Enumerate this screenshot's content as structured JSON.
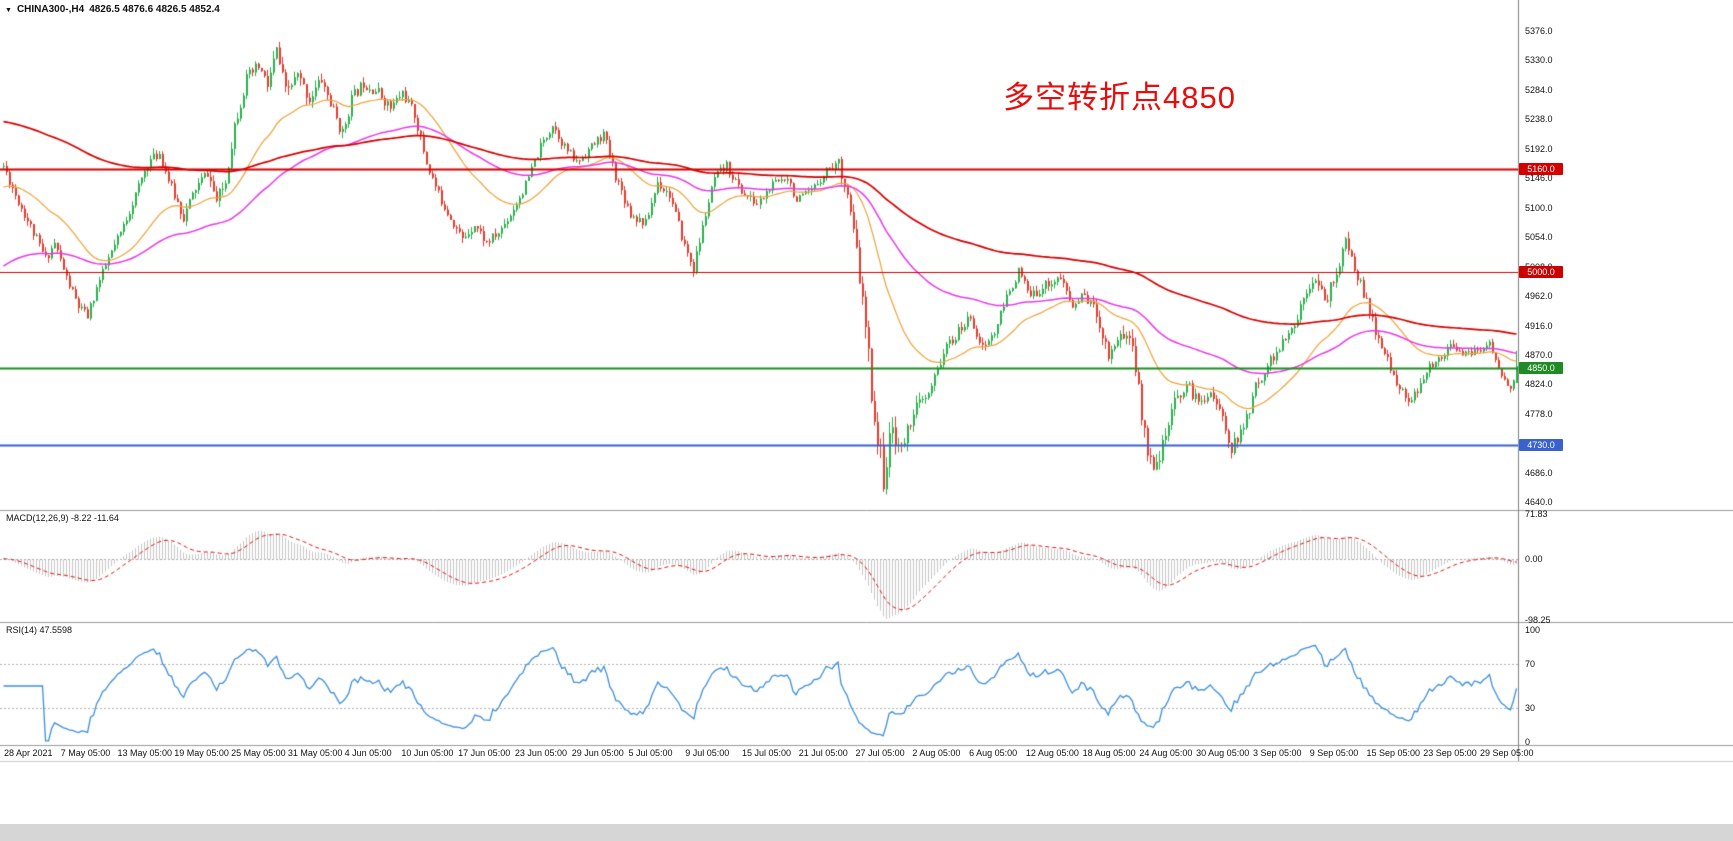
{
  "window": {
    "symbol_period": "CHINA300-,H4",
    "ohlc_text": "4826.5 4876.6 4826.5 4852.4"
  },
  "icons": {
    "symbol_marker": "▼"
  },
  "annotation": {
    "text": "多空转折点4850",
    "color": "#e60d0d"
  },
  "price_axis": {
    "labels": [
      "5376.0",
      "5330.0",
      "5284.0",
      "5238.0",
      "5192.0",
      "5146.0",
      "5100.0",
      "5054.0",
      "5008.0",
      "4962.0",
      "4916.0",
      "4870.0",
      "4824.0",
      "4778.0",
      "4732.0",
      "4686.0",
      "4640.0"
    ]
  },
  "time_axis": {
    "labels": [
      "28 Apr 2021",
      "7 May 05:00",
      "13 May 05:00",
      "19 May 05:00",
      "25 May 05:00",
      "31 May 05:00",
      "4 Jun 05:00",
      "10 Jun 05:00",
      "17 Jun 05:00",
      "23 Jun 05:00",
      "29 Jun 05:00",
      "5 Jul 05:00",
      "9 Jul 05:00",
      "15 Jul 05:00",
      "21 Jul 05:00",
      "27 Jul 05:00",
      "2 Aug 05:00",
      "6 Aug 05:00",
      "12 Aug 05:00",
      "18 Aug 05:00",
      "24 Aug 05:00",
      "30 Aug 05:00",
      "3 Sep 05:00",
      "9 Sep 05:00",
      "15 Sep 05:00",
      "23 Sep 05:00",
      "29 Sep 05:00"
    ]
  },
  "indicators": {
    "macd": {
      "label": "MACD(12,26,9) -8.22 -11.64",
      "axis_labels": [
        "71.83",
        "0.00",
        "-98.25"
      ],
      "vmax": 71.83,
      "vmin": -98.25,
      "histogram_color": "#c6c6c6",
      "signal_color": "#dd1515"
    },
    "rsi": {
      "label": "RSI(14) 47.5598",
      "axis_labels": [
        "100",
        "70",
        "30",
        "0"
      ],
      "levels": [
        70,
        30
      ],
      "line_color": "#3e8fdd"
    }
  },
  "chart_data": {
    "type": "candlestick",
    "symbol": "CHINA300-",
    "timeframe": "H4",
    "x_range": [
      "28 Apr 2021",
      "29 Sep 2021 05:00"
    ],
    "y_axis": {
      "top": 5396,
      "bottom": 4628,
      "tick_step": 46
    },
    "candle_count": 505,
    "seed": 11,
    "bull_color": "#2dae4d",
    "bear_color": "#e23b2e",
    "last_candle": {
      "open": 4826.5,
      "high": 4876.6,
      "low": 4826.5,
      "close": 4852.4
    },
    "levels": [
      {
        "label": "5160.0",
        "price": 5160.0,
        "color": "#d40000",
        "line_width": 2
      },
      {
        "label": "5000.0",
        "price": 5000.0,
        "color": "#cc0000",
        "line_width": 1.2
      },
      {
        "label": "4850.0",
        "price": 4850.0,
        "color": "#1f8b24",
        "line_width": 2
      },
      {
        "label": "4730.0",
        "price": 4730.0,
        "color": "#3a62cf",
        "line_width": 2
      }
    ],
    "moving_averages": [
      {
        "name": "fast-ma",
        "period": 34,
        "color": "#efa23a",
        "width": 1.2,
        "seed": 5130
      },
      {
        "name": "medium-ma",
        "period": 89,
        "color": "#e838e8",
        "width": 1.5,
        "seed": 5005
      },
      {
        "name": "slow-ma",
        "period": 200,
        "color": "#d40000",
        "width": 1.7,
        "seed": 5235
      }
    ],
    "price_path_anchors": [
      [
        0,
        5165
      ],
      [
        4,
        5120
      ],
      [
        10,
        5060
      ],
      [
        14,
        5020
      ],
      [
        17,
        5045
      ],
      [
        21,
        4990
      ],
      [
        25,
        4945
      ],
      [
        28,
        4930
      ],
      [
        31,
        4975
      ],
      [
        35,
        5020
      ],
      [
        39,
        5060
      ],
      [
        44,
        5120
      ],
      [
        48,
        5170
      ],
      [
        52,
        5185
      ],
      [
        56,
        5130
      ],
      [
        60,
        5085
      ],
      [
        64,
        5130
      ],
      [
        68,
        5155
      ],
      [
        71,
        5110
      ],
      [
        74,
        5140
      ],
      [
        77,
        5230
      ],
      [
        81,
        5300
      ],
      [
        85,
        5320
      ],
      [
        88,
        5290
      ],
      [
        91,
        5345
      ],
      [
        94,
        5280
      ],
      [
        98,
        5305
      ],
      [
        102,
        5270
      ],
      [
        106,
        5300
      ],
      [
        110,
        5250
      ],
      [
        113,
        5215
      ],
      [
        116,
        5270
      ],
      [
        120,
        5295
      ],
      [
        125,
        5280
      ],
      [
        129,
        5255
      ],
      [
        133,
        5280
      ],
      [
        137,
        5245
      ],
      [
        141,
        5170
      ],
      [
        145,
        5120
      ],
      [
        149,
        5085
      ],
      [
        153,
        5050
      ],
      [
        157,
        5075
      ],
      [
        161,
        5045
      ],
      [
        165,
        5060
      ],
      [
        169,
        5090
      ],
      [
        174,
        5135
      ],
      [
        179,
        5195
      ],
      [
        183,
        5230
      ],
      [
        187,
        5195
      ],
      [
        191,
        5170
      ],
      [
        196,
        5195
      ],
      [
        200,
        5215
      ],
      [
        204,
        5150
      ],
      [
        209,
        5090
      ],
      [
        214,
        5075
      ],
      [
        218,
        5140
      ],
      [
        222,
        5120
      ],
      [
        227,
        5040
      ],
      [
        230,
        5005
      ],
      [
        234,
        5090
      ],
      [
        237,
        5145
      ],
      [
        241,
        5165
      ],
      [
        246,
        5125
      ],
      [
        251,
        5105
      ],
      [
        256,
        5135
      ],
      [
        261,
        5150
      ],
      [
        264,
        5110
      ],
      [
        269,
        5125
      ],
      [
        274,
        5160
      ],
      [
        278,
        5170
      ],
      [
        281,
        5120
      ],
      [
        284,
        5030
      ],
      [
        287,
        4910
      ],
      [
        290,
        4770
      ],
      [
        293,
        4680
      ],
      [
        296,
        4755
      ],
      [
        299,
        4720
      ],
      [
        303,
        4785
      ],
      [
        308,
        4805
      ],
      [
        313,
        4875
      ],
      [
        318,
        4905
      ],
      [
        322,
        4930
      ],
      [
        326,
        4880
      ],
      [
        330,
        4905
      ],
      [
        334,
        4960
      ],
      [
        338,
        5000
      ],
      [
        342,
        4960
      ],
      [
        347,
        4980
      ],
      [
        352,
        4990
      ],
      [
        356,
        4945
      ],
      [
        360,
        4965
      ],
      [
        364,
        4935
      ],
      [
        368,
        4870
      ],
      [
        372,
        4905
      ],
      [
        376,
        4890
      ],
      [
        379,
        4775
      ],
      [
        382,
        4700
      ],
      [
        386,
        4725
      ],
      [
        390,
        4795
      ],
      [
        394,
        4825
      ],
      [
        398,
        4795
      ],
      [
        402,
        4815
      ],
      [
        406,
        4770
      ],
      [
        409,
        4725
      ],
      [
        413,
        4755
      ],
      [
        417,
        4820
      ],
      [
        421,
        4855
      ],
      [
        425,
        4880
      ],
      [
        430,
        4915
      ],
      [
        434,
        4975
      ],
      [
        437,
        4995
      ],
      [
        440,
        4950
      ],
      [
        444,
        5000
      ],
      [
        447,
        5045
      ],
      [
        451,
        4995
      ],
      [
        455,
        4935
      ],
      [
        459,
        4880
      ],
      [
        463,
        4840
      ],
      [
        467,
        4800
      ],
      [
        471,
        4810
      ],
      [
        475,
        4850
      ],
      [
        479,
        4870
      ],
      [
        483,
        4885
      ],
      [
        487,
        4870
      ],
      [
        491,
        4875
      ],
      [
        495,
        4890
      ],
      [
        499,
        4835
      ],
      [
        502,
        4815
      ],
      [
        504,
        4850
      ]
    ],
    "volatility_anchors": [
      [
        0,
        18
      ],
      [
        40,
        16
      ],
      [
        75,
        22
      ],
      [
        91,
        26
      ],
      [
        120,
        20
      ],
      [
        150,
        18
      ],
      [
        180,
        16
      ],
      [
        215,
        18
      ],
      [
        240,
        16
      ],
      [
        270,
        15
      ],
      [
        282,
        20
      ],
      [
        287,
        42
      ],
      [
        293,
        46
      ],
      [
        300,
        26
      ],
      [
        312,
        20
      ],
      [
        330,
        17
      ],
      [
        355,
        15
      ],
      [
        375,
        28
      ],
      [
        383,
        34
      ],
      [
        390,
        22
      ],
      [
        400,
        18
      ],
      [
        412,
        20
      ],
      [
        424,
        18
      ],
      [
        434,
        20
      ],
      [
        447,
        22
      ],
      [
        458,
        18
      ],
      [
        470,
        16
      ],
      [
        485,
        14
      ],
      [
        504,
        13
      ]
    ]
  }
}
